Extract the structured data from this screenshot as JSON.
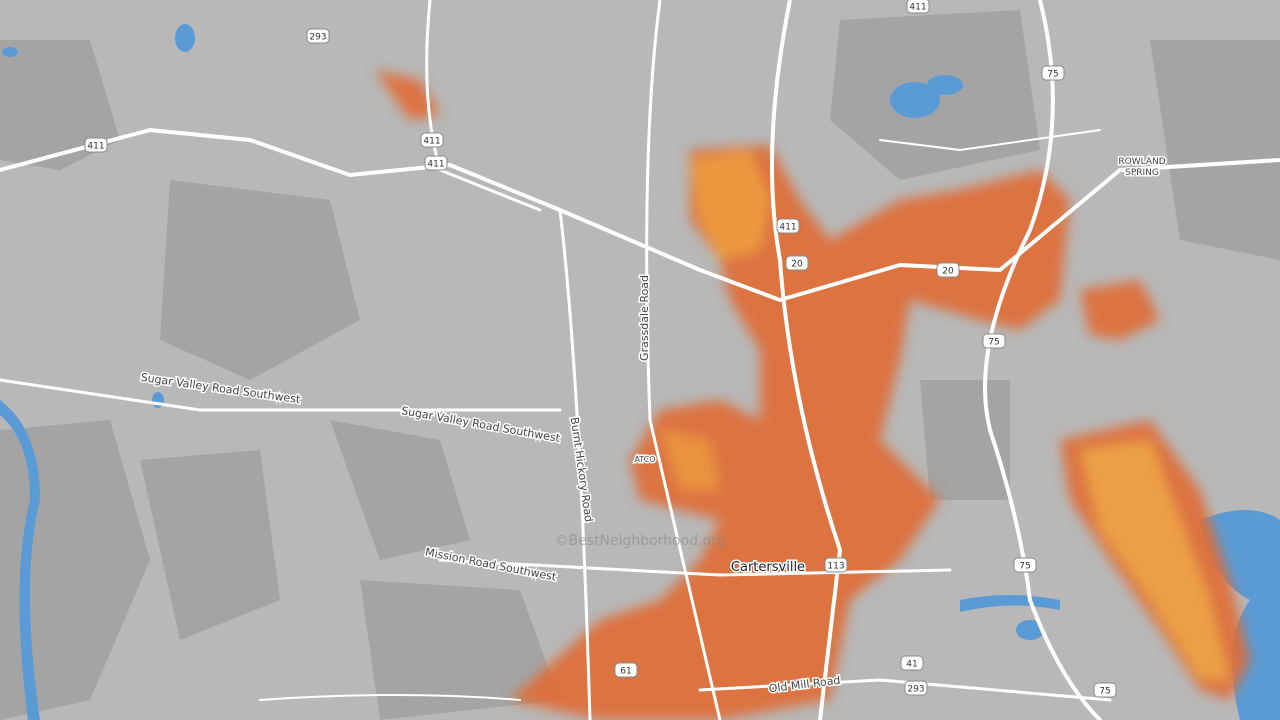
{
  "map": {
    "watermark": "©BestNeighborhood.org",
    "places": [
      "Cartersville",
      "ROWLAND",
      "SPRING",
      "ATCO"
    ],
    "roads": [
      "Sugar Valley Road Southwest",
      "Sugar Valley Road Southwest",
      "Burnt Hickory Road",
      "Grassdale Road",
      "Mission Road Southwest",
      "Old Mill Road"
    ],
    "shields": [
      "293",
      "411",
      "411",
      "411",
      "411",
      "411",
      "75",
      "75",
      "75",
      "75",
      "20",
      "20",
      "113",
      "61",
      "41",
      "293"
    ]
  }
}
